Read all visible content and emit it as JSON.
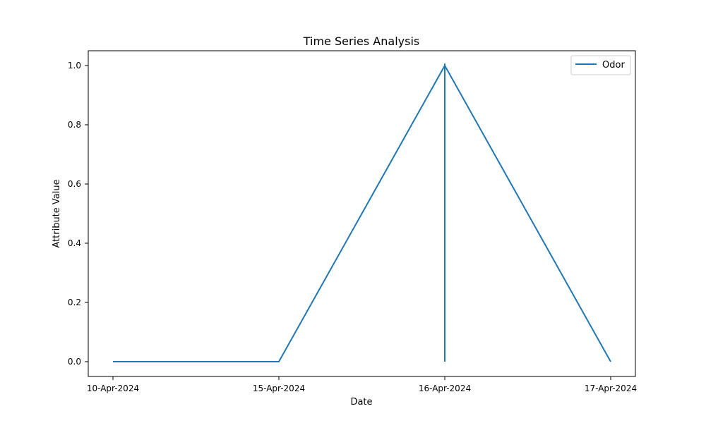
{
  "chart_data": {
    "type": "line",
    "title": "Time Series Analysis",
    "xlabel": "Date",
    "ylabel": "Attribute Value",
    "x_ticks": [
      "10-Apr-2024",
      "15-Apr-2024",
      "16-Apr-2024",
      "17-Apr-2024"
    ],
    "y_ticks": [
      "0.0",
      "0.2",
      "0.4",
      "0.6",
      "0.8",
      "1.0"
    ],
    "ylim": [
      -0.05,
      1.05
    ],
    "grid": false,
    "legend_position": "top-right",
    "series": [
      {
        "name": "Odor",
        "color": "#1f77b4",
        "points": [
          {
            "x": "10-Apr-2024",
            "y": 0.0
          },
          {
            "x": "15-Apr-2024",
            "y": 0.0
          },
          {
            "x": "16-Apr-2024",
            "y": 1.0
          },
          {
            "x": "16-Apr-2024",
            "y": 0.0
          },
          {
            "x": "16-Apr-2024",
            "y": 1.0
          },
          {
            "x": "17-Apr-2024",
            "y": 0.0
          }
        ]
      }
    ]
  }
}
